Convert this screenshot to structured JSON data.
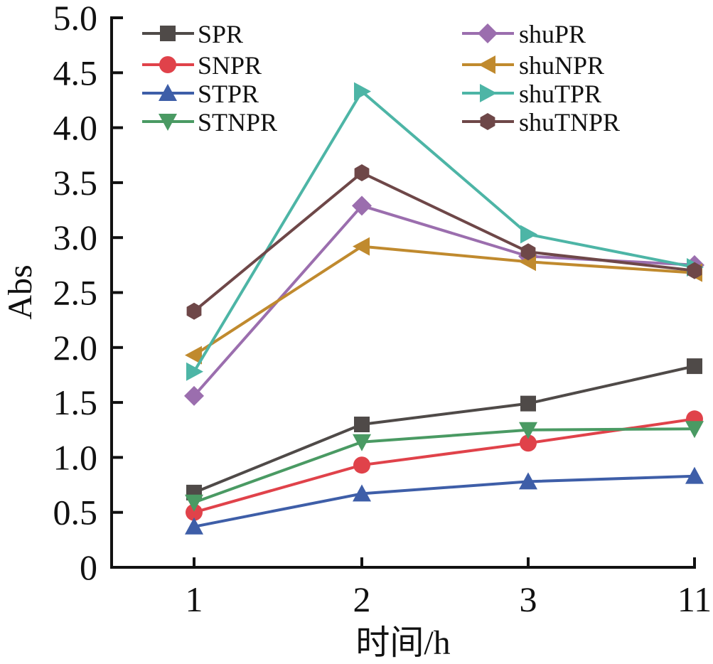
{
  "chart_data": {
    "type": "line",
    "title": "",
    "xlabel": "时间/h",
    "ylabel": "Abs",
    "categories": [
      "1",
      "2",
      "3",
      "11"
    ],
    "ylim": [
      0,
      5.0
    ],
    "yticks": [
      "0",
      "0.5",
      "1.0",
      "1.5",
      "2.0",
      "2.5",
      "3.0",
      "3.5",
      "4.0",
      "4.5",
      "5.0"
    ],
    "grid": false,
    "legend_position": "top",
    "series": [
      {
        "name": "SPR",
        "color": "#4f4a48",
        "marker": "square",
        "values": [
          0.68,
          1.3,
          1.49,
          1.83
        ]
      },
      {
        "name": "SNPR",
        "color": "#e0424a",
        "marker": "circle",
        "values": [
          0.5,
          0.93,
          1.13,
          1.35
        ]
      },
      {
        "name": "STPR",
        "color": "#3e5ea8",
        "marker": "triangle-up",
        "values": [
          0.37,
          0.67,
          0.78,
          0.83
        ]
      },
      {
        "name": "STNPR",
        "color": "#4a9a63",
        "marker": "triangle-down",
        "values": [
          0.59,
          1.14,
          1.25,
          1.26
        ]
      },
      {
        "name": "shuPR",
        "color": "#9b6eae",
        "marker": "diamond",
        "values": [
          1.56,
          3.29,
          2.83,
          2.75
        ]
      },
      {
        "name": "shuNPR",
        "color": "#c08a2e",
        "marker": "triangle-left",
        "values": [
          1.93,
          2.92,
          2.78,
          2.68
        ]
      },
      {
        "name": "shuTPR",
        "color": "#4db5a6",
        "marker": "triangle-right",
        "values": [
          1.78,
          4.33,
          3.03,
          2.73
        ]
      },
      {
        "name": "shuTNPR",
        "color": "#6e4748",
        "marker": "hexagon",
        "values": [
          2.33,
          3.59,
          2.87,
          2.7
        ]
      }
    ]
  }
}
